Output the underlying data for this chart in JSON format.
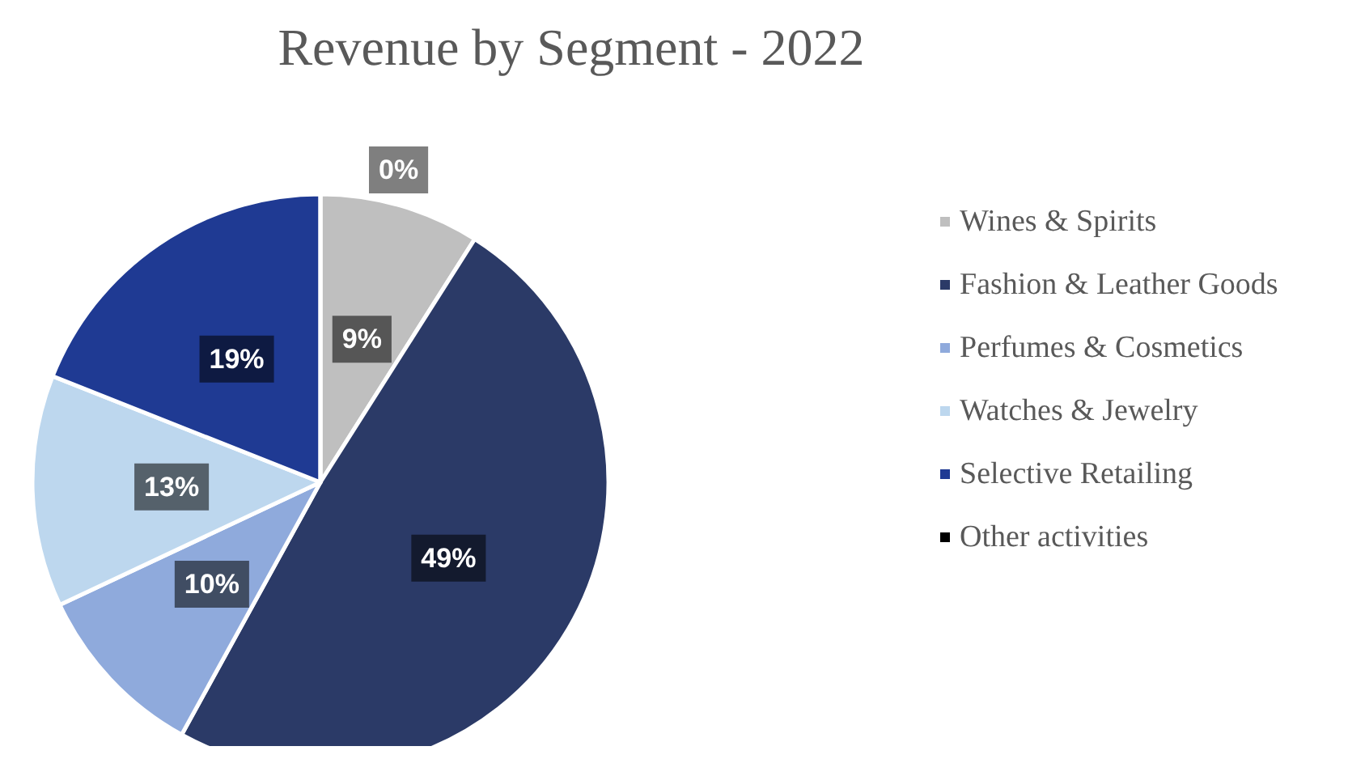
{
  "chart_data": {
    "type": "pie",
    "title": "Revenue by Segment - 2022",
    "categories": [
      "Wines & Spirits",
      "Fashion & Leather Goods",
      "Perfumes & Cosmetics",
      "Watches & Jewelry",
      "Selective Retailing",
      "Other activities"
    ],
    "values": [
      9,
      49,
      10,
      13,
      19,
      0
    ],
    "value_labels": [
      "9%",
      "49%",
      "10%",
      "13%",
      "19%",
      "0%"
    ],
    "colors": [
      "#bfbfbf",
      "#2b3a67",
      "#8faadc",
      "#bdd7ee",
      "#1f3a93",
      "#000000"
    ],
    "legend": "right"
  }
}
